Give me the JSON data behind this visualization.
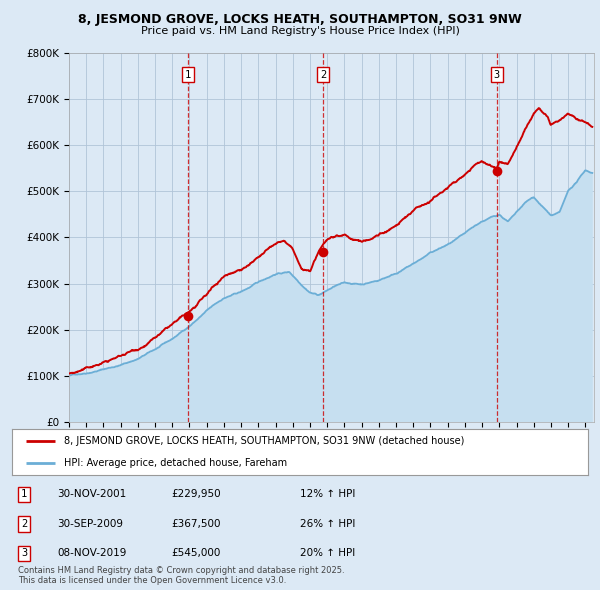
{
  "title_line1": "8, JESMOND GROVE, LOCKS HEATH, SOUTHAMPTON, SO31 9NW",
  "title_line2": "Price paid vs. HM Land Registry's House Price Index (HPI)",
  "sale_prices": [
    229950,
    367500,
    545000
  ],
  "sale_labels": [
    "1",
    "2",
    "3"
  ],
  "sale_year_floats": [
    2001.92,
    2009.75,
    2019.86
  ],
  "legend_line1": "8, JESMOND GROVE, LOCKS HEATH, SOUTHAMPTON, SO31 9NW (detached house)",
  "legend_line2": "HPI: Average price, detached house, Fareham",
  "table_rows": [
    {
      "num": "1",
      "date": "30-NOV-2001",
      "price": "£229,950",
      "change": "12% ↑ HPI"
    },
    {
      "num": "2",
      "date": "30-SEP-2009",
      "price": "£367,500",
      "change": "26% ↑ HPI"
    },
    {
      "num": "3",
      "date": "08-NOV-2019",
      "price": "£545,000",
      "change": "20% ↑ HPI"
    }
  ],
  "footer": "Contains HM Land Registry data © Crown copyright and database right 2025.\nThis data is licensed under the Open Government Licence v3.0.",
  "hpi_line_color": "#6baed6",
  "hpi_fill_color": "#c6dff0",
  "price_color": "#cc0000",
  "vline_color": "#cc0000",
  "background_color": "#dce9f5",
  "plot_bg_color": "#dce9f5",
  "grid_color": "#b0c4d8",
  "ylim": [
    0,
    800000
  ],
  "xlim_start": 1995.0,
  "xlim_end": 2025.5,
  "fig_width": 6.0,
  "fig_height": 5.9
}
